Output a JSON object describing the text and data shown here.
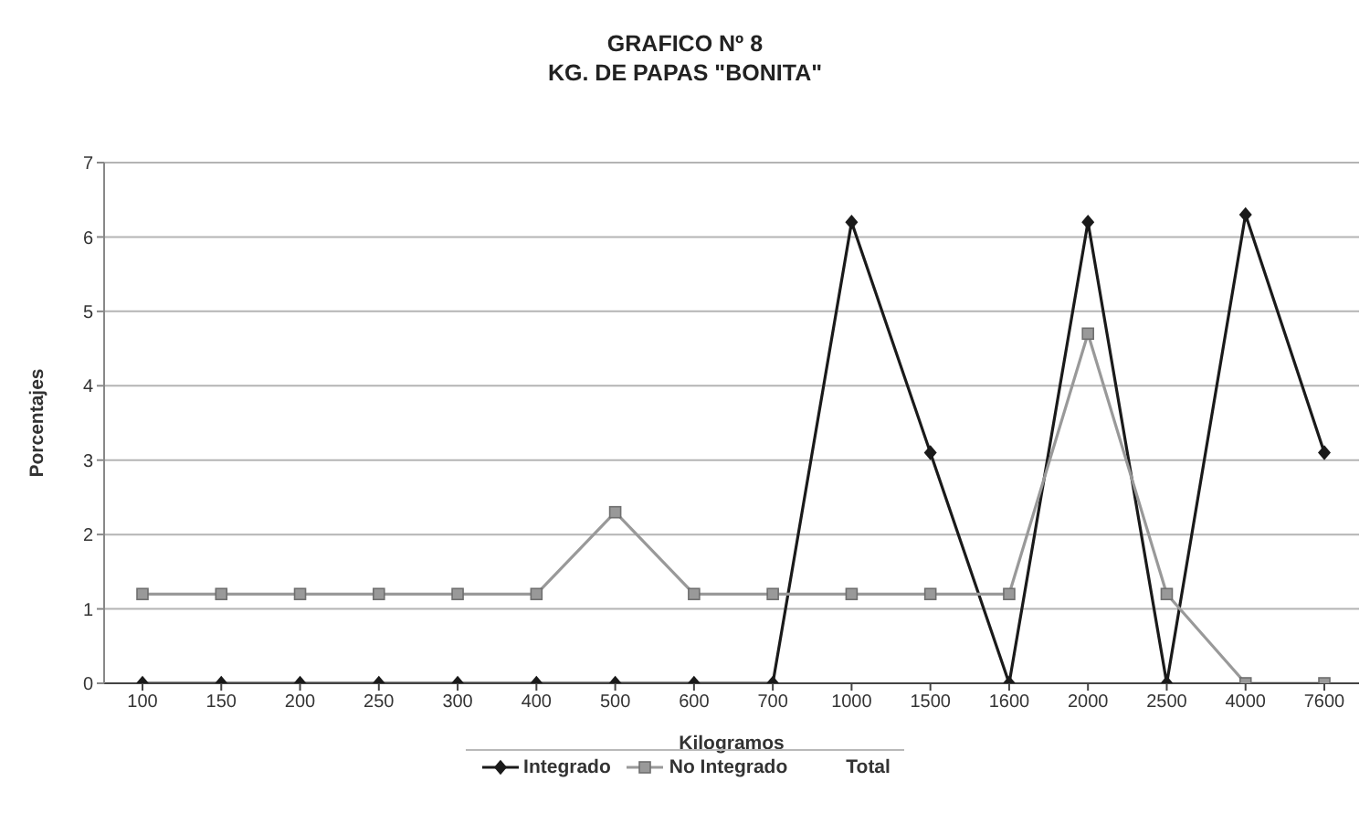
{
  "chart_data": {
    "type": "line",
    "title": "GRAFICO Nº 8\nKG. DE PAPAS \"BONITA\"",
    "xlabel": "Kilogramos",
    "ylabel": "Porcentajes",
    "categories": [
      "100",
      "150",
      "200",
      "250",
      "300",
      "400",
      "500",
      "600",
      "700",
      "1000",
      "1500",
      "1600",
      "2000",
      "2500",
      "4000",
      "7600"
    ],
    "series": [
      {
        "name": "Integrado",
        "color": "#1a1a1a",
        "marker": "diamond",
        "values": [
          0,
          0,
          0,
          0,
          0,
          0,
          0,
          0,
          0,
          6.2,
          3.1,
          0,
          6.2,
          0,
          6.3,
          3.1
        ]
      },
      {
        "name": "No Integrado",
        "color": "#999999",
        "marker": "square",
        "values": [
          1.2,
          1.2,
          1.2,
          1.2,
          1.2,
          1.2,
          2.3,
          1.2,
          1.2,
          1.2,
          1.2,
          1.2,
          4.7,
          1.2,
          0,
          0
        ]
      },
      {
        "name": "Total",
        "values": [
          null,
          null,
          null,
          null,
          null,
          null,
          null,
          null,
          null,
          null,
          null,
          null,
          null,
          null,
          null,
          null
        ]
      }
    ],
    "ylim": [
      0,
      7
    ],
    "yticks": [
      0,
      1,
      2,
      3,
      4,
      5,
      6,
      7
    ],
    "grid": "y",
    "legend": "bottom"
  }
}
